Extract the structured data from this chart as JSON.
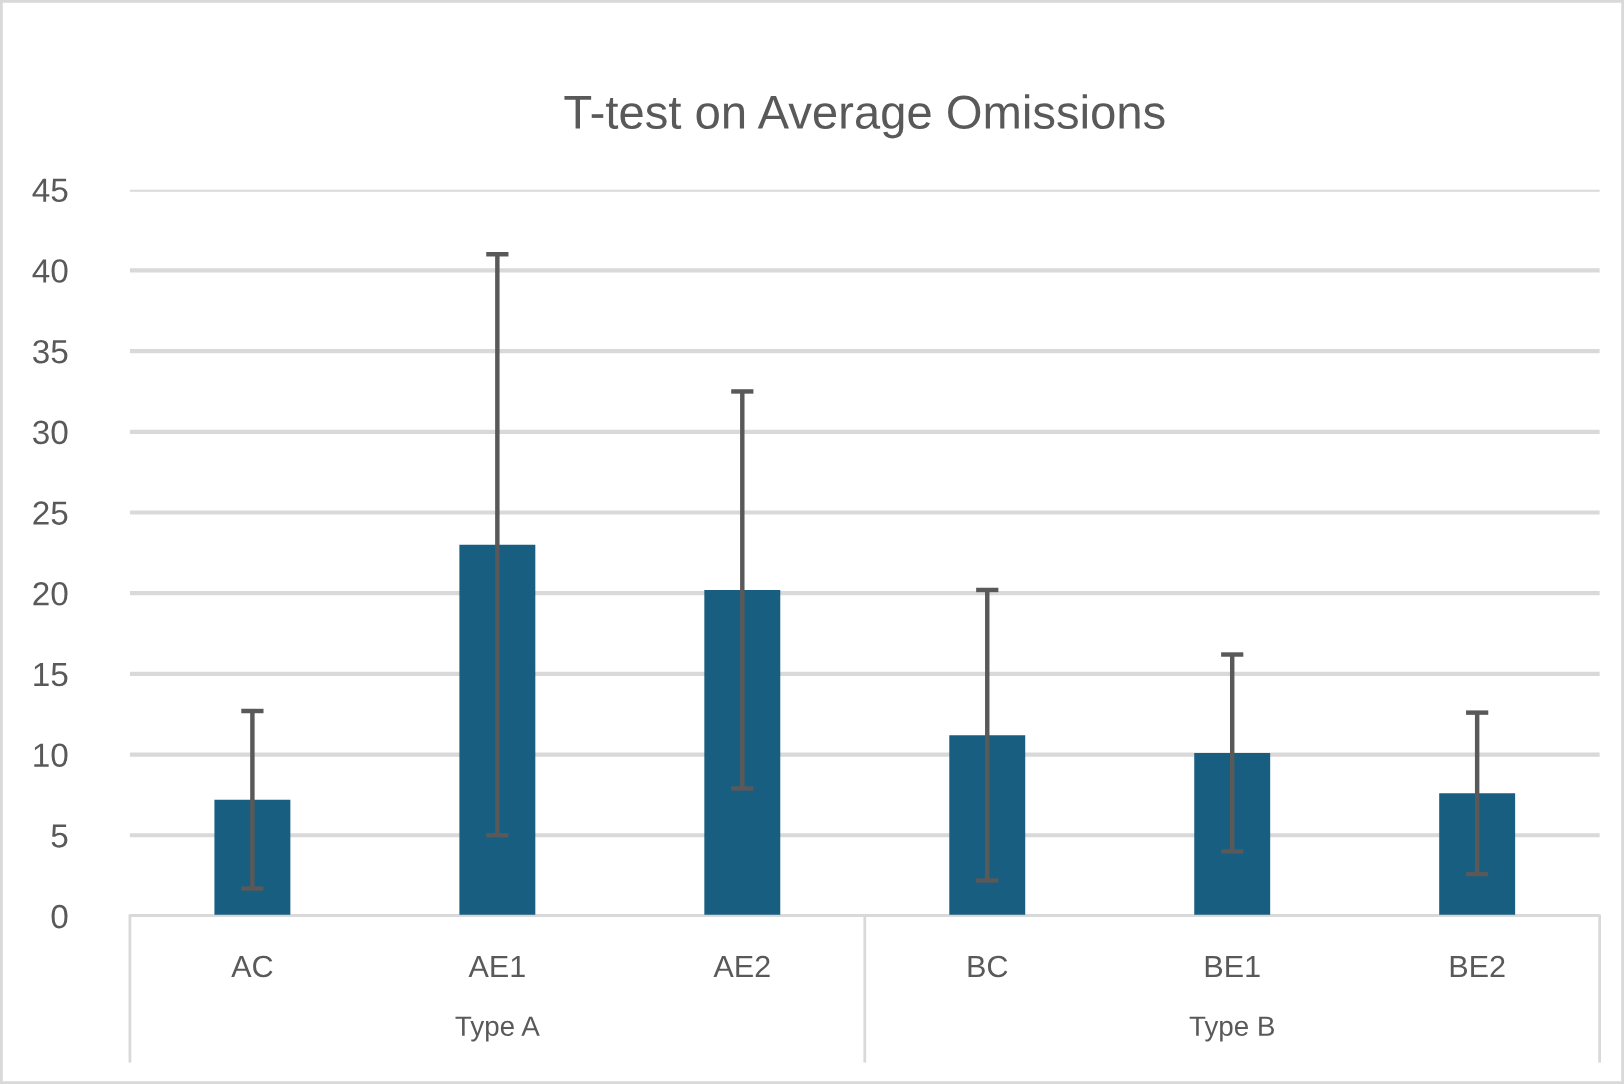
{
  "chart_data": {
    "type": "bar",
    "title": "T-test on Average Omissions",
    "categories": [
      "AC",
      "AE1",
      "AE2",
      "BC",
      "BE1",
      "BE2"
    ],
    "values": [
      7.2,
      23.0,
      20.2,
      11.2,
      10.1,
      7.6
    ],
    "errors": [
      5.5,
      18.0,
      12.3,
      9.0,
      6.1,
      5.0
    ],
    "color": "#175e80",
    "ylim": [
      0,
      45
    ],
    "yticks": [
      0,
      5,
      10,
      15,
      20,
      25,
      30,
      35,
      40,
      45
    ],
    "grid": "y",
    "annotations": [
      "Type A",
      "Type B"
    ]
  }
}
